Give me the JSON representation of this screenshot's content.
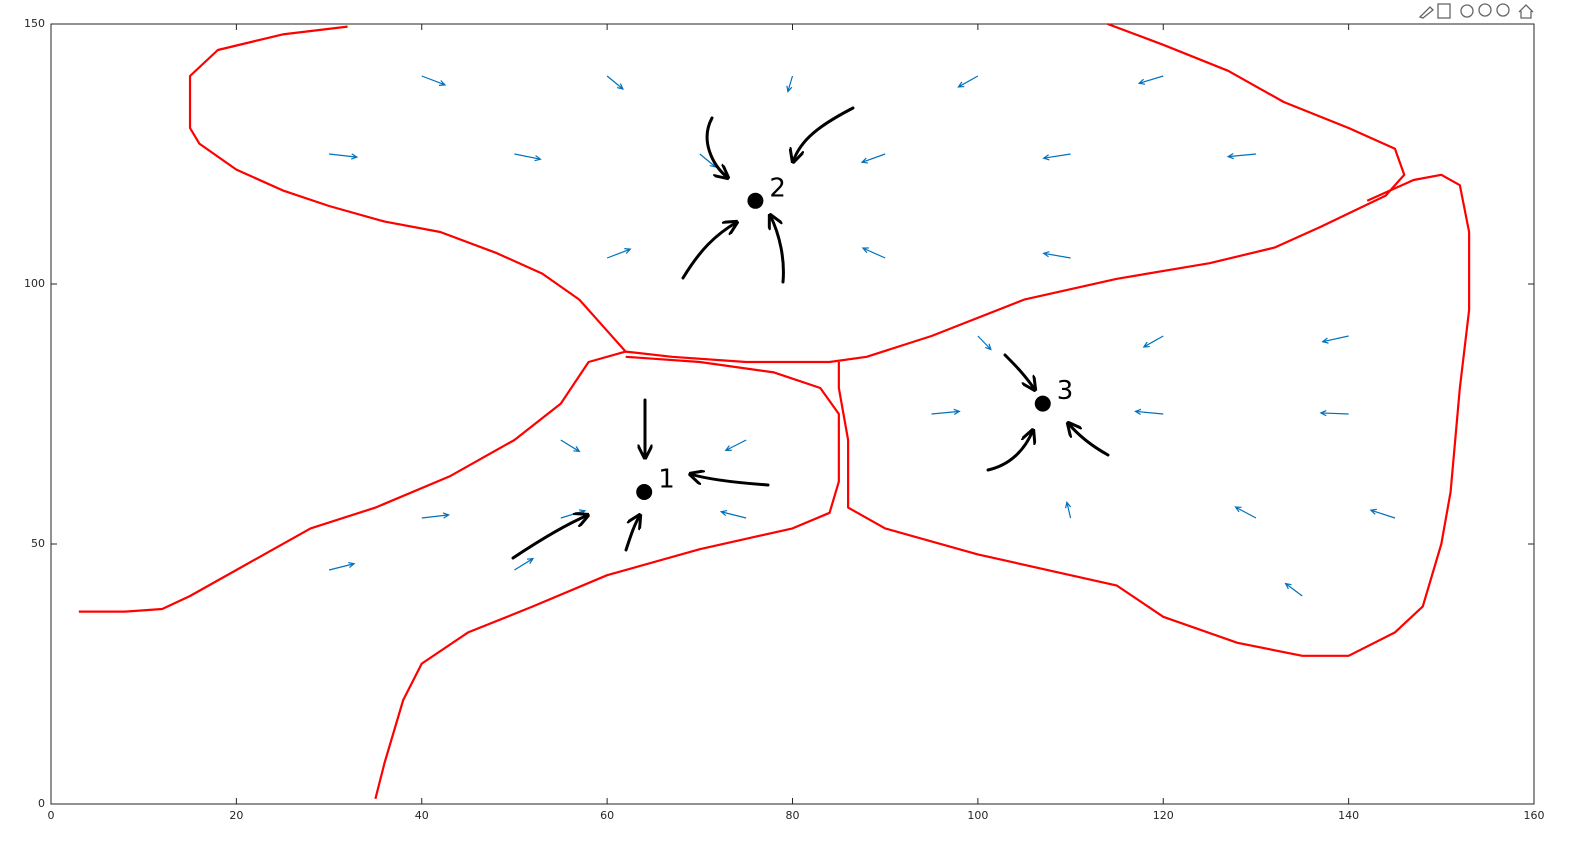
{
  "chart_data": {
    "type": "quiver",
    "xlim": [
      0,
      160
    ],
    "ylim": [
      0,
      150
    ],
    "xticks": [
      0,
      20,
      40,
      60,
      80,
      100,
      120,
      140,
      160
    ],
    "yticks": [
      0,
      50,
      100,
      150
    ],
    "color": "#0072bd",
    "x": [
      40,
      60,
      80,
      100,
      120,
      30,
      50,
      70,
      90,
      110,
      130,
      60,
      90,
      110,
      55,
      75,
      40,
      55,
      75,
      30,
      50,
      100,
      120,
      140,
      95,
      120,
      140,
      110,
      130,
      145,
      135
    ],
    "y": [
      140,
      140,
      140,
      140,
      140,
      125,
      125,
      125,
      125,
      125,
      125,
      105,
      105,
      105,
      70,
      70,
      55,
      55,
      55,
      45,
      45,
      90,
      90,
      90,
      75,
      75,
      75,
      55,
      55,
      55,
      40
    ],
    "u": [
      2.5,
      1.7,
      -0.5,
      -2.1,
      -2.6,
      3,
      2.8,
      1.7,
      -2.5,
      -2.9,
      -3,
      2.5,
      -2.4,
      -2.9,
      2,
      -2.2,
      2.9,
      2.6,
      -2.7,
      2.7,
      2,
      1.4,
      -2.1,
      -2.8,
      3,
      -3,
      -3,
      -0.4,
      -2.2,
      -2.6,
      -1.8
    ],
    "v": [
      -1.7,
      -2.5,
      -3,
      -2.1,
      -1.4,
      -0.6,
      -1,
      -2.5,
      -1.6,
      -0.8,
      -0.5,
      1.7,
      1.9,
      0.9,
      -2.2,
      -2,
      0.6,
      1.4,
      1.2,
      1.2,
      2.2,
      -2.6,
      -2.1,
      -1.1,
      0.5,
      0.5,
      0.2,
      3,
      2.1,
      1.5,
      2.4
    ],
    "lines": [
      {
        "color": "#ff0000",
        "x": [
          32,
          25,
          18,
          15,
          15,
          16,
          20,
          25,
          30,
          36,
          42,
          48,
          53,
          57,
          60,
          62,
          67,
          75,
          84,
          88,
          95,
          105,
          115,
          125,
          132,
          137,
          144,
          146,
          145,
          140,
          133,
          127,
          120,
          114
        ],
        "y": [
          149.5,
          148,
          145,
          140,
          130,
          127,
          122,
          118,
          115,
          112,
          110,
          106,
          102,
          97,
          91,
          87,
          86,
          85,
          85,
          86,
          90,
          97,
          101,
          104,
          107,
          111,
          117,
          121,
          126,
          130,
          135,
          141,
          146,
          150
        ]
      },
      {
        "color": "#ff0000",
        "x": [
          142,
          147,
          150,
          152,
          153,
          153,
          152,
          151,
          150,
          148,
          145,
          140,
          135,
          128,
          120,
          115,
          110,
          100,
          90,
          86,
          86,
          86,
          85,
          85
        ],
        "y": [
          116,
          120,
          121,
          119,
          110,
          95,
          80,
          60,
          50,
          38,
          33,
          28.5,
          28.5,
          31,
          36,
          42,
          44,
          48,
          53,
          57,
          60,
          70,
          80,
          85
        ]
      },
      {
        "color": "#ff0000",
        "x": [
          62,
          58,
          55,
          50,
          43,
          35,
          28,
          20,
          15,
          12,
          8,
          3
        ],
        "y": [
          87,
          85,
          77,
          70,
          63,
          57,
          53,
          45,
          40,
          37.5,
          37,
          37
        ]
      },
      {
        "color": "#ff0000",
        "x": [
          35,
          36,
          38,
          40,
          45,
          52,
          60,
          70,
          80,
          84,
          85,
          85,
          83,
          78,
          70,
          62
        ],
        "y": [
          1,
          8,
          20,
          27,
          33,
          38,
          44,
          49,
          53,
          56,
          62,
          75,
          80,
          83,
          85,
          86
        ]
      }
    ],
    "points": {
      "x": [
        64,
        76,
        107
      ],
      "y": [
        60,
        116,
        77
      ],
      "labels": [
        "1",
        "2",
        "3"
      ]
    }
  }
}
